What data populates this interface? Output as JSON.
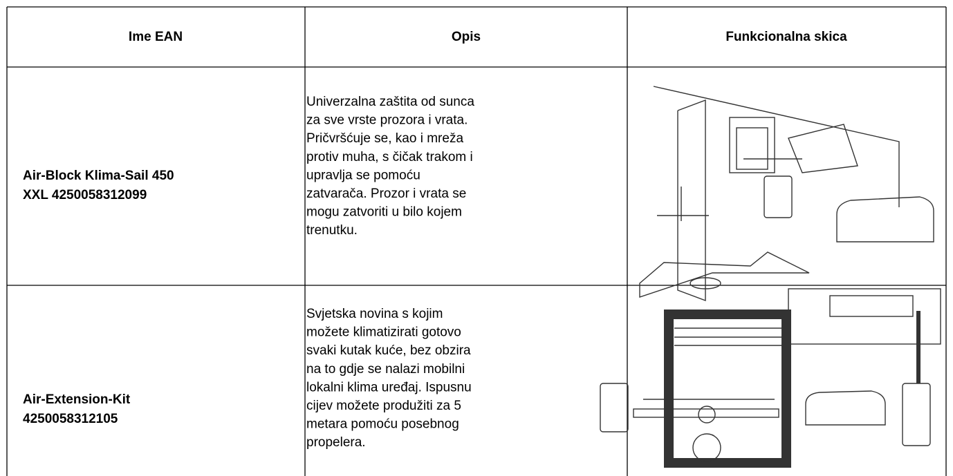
{
  "table": {
    "header": [
      "Ime EAN",
      "Opis",
      "Funkcionalna skica"
    ],
    "rows": [
      {
        "name": [
          "Air-Block Klima-Sail 450",
          "XXL 4250058312099"
        ],
        "description": [
          "Univerzalna zaštita od sunca",
          "za sve vrste prozora i vrata.",
          "Pričvršćuje se, kao i mreža",
          "protiv muha, s čičak trakom i",
          "upravlja se pomoću",
          "zatvarača. Prozor i vrata se",
          "mogu zatvoriti u bilo kojem",
          "trenutku."
        ]
      },
      {
        "name": [
          "Air-Extension-Kit",
          "4250058312105"
        ],
        "description": [
          "Svjetska novina s kojim",
          "možete klimatizirati gotovo",
          "svaki kutak kuće, bez obzira",
          "na to gdje se nalazi mobilni",
          "lokalni klima uređaj. Ispusnu",
          "cijev možete produžiti za 5",
          "metara pomoću posebnog",
          "propelera."
        ]
      }
    ]
  }
}
